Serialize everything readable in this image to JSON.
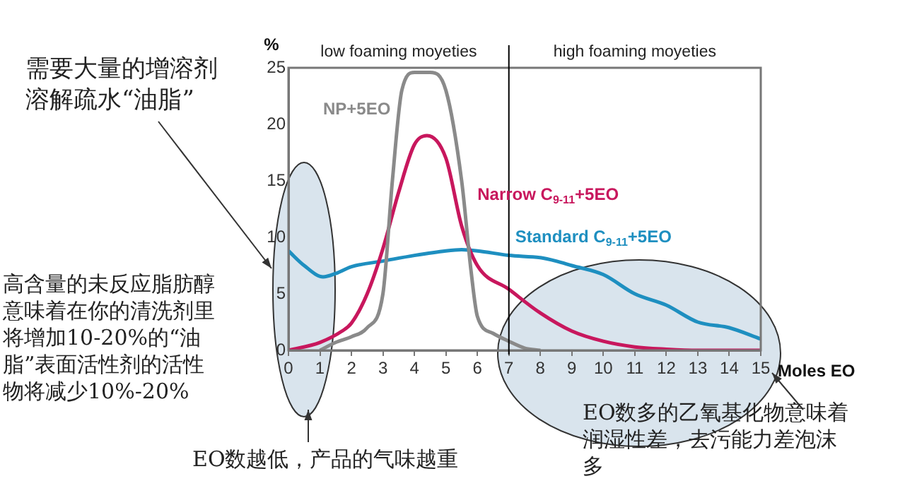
{
  "chart_data": {
    "type": "line",
    "xlabel": "Moles EO",
    "ylabel": "%",
    "xlim": [
      0,
      15
    ],
    "xticks": [
      0,
      1,
      2,
      3,
      4,
      5,
      6,
      7,
      8,
      9,
      10,
      11,
      12,
      13,
      14,
      15
    ],
    "ylim": [
      0,
      25
    ],
    "yticks": [
      0,
      5,
      10,
      15,
      20,
      25
    ],
    "grid": false,
    "legend": false,
    "marker": "none",
    "line_style": "solid",
    "series": [
      {
        "name": "NP+5EO",
        "color": "#8a8a8a",
        "x": [
          1,
          1.5,
          2,
          2.5,
          3,
          3.3,
          3.6,
          4,
          4.5,
          5,
          5.5,
          5.8,
          6,
          6.5,
          7,
          7.5,
          8
        ],
        "values": [
          0,
          0.7,
          1.2,
          2,
          5,
          15,
          23,
          24.6,
          24.6,
          23,
          15,
          7,
          3,
          1.5,
          0.8,
          0.2,
          0
        ]
      },
      {
        "name": "Narrow C$_{9-11}$+5EO",
        "color": "#c8175d",
        "x": [
          0,
          1,
          1.7,
          2,
          2.5,
          3,
          3.5,
          4,
          4.4,
          5,
          5.5,
          6,
          7,
          8,
          9,
          10,
          11,
          12,
          13,
          14,
          15
        ],
        "values": [
          0,
          0.7,
          1.7,
          2.4,
          5,
          9,
          14,
          18.2,
          19,
          17,
          11,
          7.5,
          5.4,
          3.3,
          1.7,
          0.8,
          0.3,
          0.1,
          0,
          0,
          0
        ]
      },
      {
        "name": "Standard C$_{9-11}$+5EO",
        "color": "#1e8fc0",
        "x": [
          0,
          0.5,
          1.1,
          1.5,
          2,
          3,
          4,
          5,
          5.5,
          6,
          7,
          8,
          8.5,
          9,
          10,
          11,
          12,
          13,
          14,
          15
        ],
        "values": [
          8.8,
          7.5,
          6.5,
          6.8,
          7.4,
          7.9,
          8.4,
          8.8,
          8.9,
          8.8,
          8.4,
          8.2,
          7.9,
          7.5,
          6.7,
          5,
          4,
          2.5,
          2,
          1
        ]
      }
    ],
    "ref_lines": [
      {
        "axis": "x",
        "value": 7,
        "color": "#000000"
      }
    ],
    "annotations": [
      "low foaming moyeties",
      "high foaming moyeties",
      "需要大量的增溶剂溶解疏水“油脂”",
      "高含量的未反应脂肪醇意味着在你的清洗剂里将增加10-20%的“油脂”表面活性剂的活性物将减少10%-20%",
      "EO数越低，产品的气味越重",
      "EO数多的乙氧基化物意味着润湿性差，去污能力差泡沫多"
    ]
  }
}
